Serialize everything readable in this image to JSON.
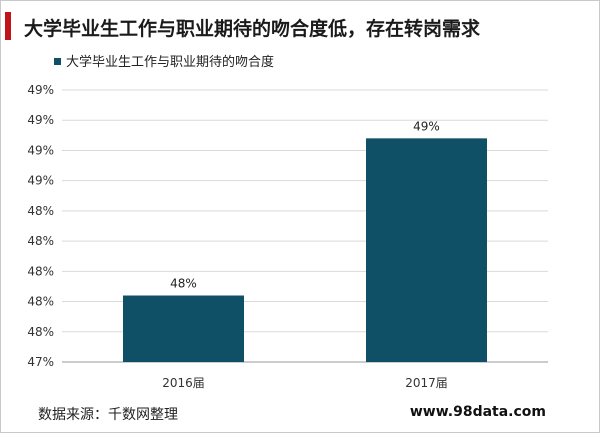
{
  "page": {
    "title": "大学毕业生工作与职业期待的吻合度低，存在转岗需求",
    "source": "数据来源：千数网整理",
    "website": "www.98data.com"
  },
  "chart_data": {
    "type": "bar",
    "title": "",
    "categories": [
      "2016届",
      "2017届"
    ],
    "series": [
      {
        "name": "大学毕业生工作与职业期待的吻合度",
        "values": [
          47.8,
          49.1
        ],
        "data_labels": [
          "48%",
          "49%"
        ],
        "color": "#0f5066"
      }
    ],
    "ylim": [
      47.25,
      49.5
    ],
    "y_ticks": [
      49.5,
      49.25,
      49.0,
      48.75,
      48.5,
      48.25,
      48.0,
      47.75,
      47.5,
      47.25
    ],
    "y_tick_labels": [
      "49%",
      "49%",
      "49%",
      "49%",
      "48%",
      "48%",
      "48%",
      "48%",
      "48%",
      "47%"
    ],
    "grid": "horizontal",
    "legend": "top-left"
  }
}
